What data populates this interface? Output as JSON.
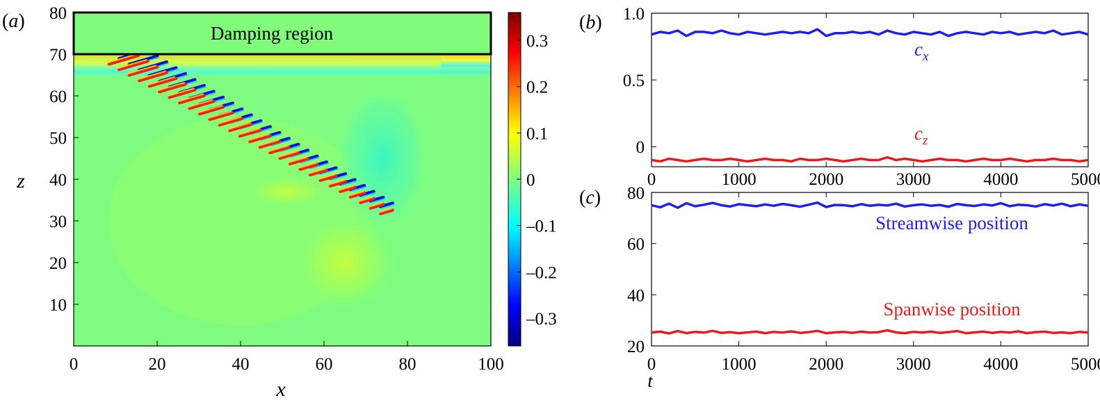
{
  "colors": {
    "blue": "#1f1fe6",
    "red": "#e61c1c",
    "field_bg": "#7ffc7f",
    "damping_bg": "#80fa7a"
  },
  "chart_data": [
    {
      "type": "heatmap",
      "panel": "(a)",
      "panel_letter": "a",
      "xlabel": "x",
      "ylabel": "z",
      "xlim": [
        0,
        100
      ],
      "ylim": [
        0,
        80
      ],
      "xticks": [
        0,
        20,
        40,
        60,
        80,
        100
      ],
      "yticks": [
        10,
        20,
        30,
        40,
        50,
        60,
        70,
        80
      ],
      "annotation": "Damping region",
      "damping_region": {
        "z_from": 70,
        "z_to": 80,
        "x_from": 0,
        "x_to": 100
      },
      "colorbar": {
        "range": [
          -0.36,
          0.36
        ],
        "ticks": [
          0.3,
          0.2,
          0.1,
          0,
          -0.1,
          -0.2,
          -0.3
        ],
        "tick_labels": [
          "0.3",
          "0.2",
          "0.1",
          "0",
          "–0.1",
          "–0.2",
          "–0.3"
        ],
        "colormap": "jet"
      },
      "wake": {
        "source": [
          75,
          33
        ],
        "edge_start": [
          12,
          70
        ],
        "note": "alternating positive/negative streaks along a wedge from the source toward the damping region"
      }
    },
    {
      "type": "line",
      "panel": "(b)",
      "panel_letter": "b",
      "xlim": [
        0,
        5000
      ],
      "ylim": [
        -0.15,
        1.0
      ],
      "xticks": [
        0,
        1000,
        2000,
        3000,
        4000,
        5000
      ],
      "yticks": [
        0,
        0.5,
        1.0
      ],
      "ytick_labels": [
        "0",
        "0.5",
        "1.0"
      ],
      "series": [
        {
          "name": "c",
          "subscript": "x",
          "color": "#1f1fe6",
          "x": [
            0,
            100,
            200,
            300,
            400,
            500,
            600,
            700,
            800,
            900,
            1000,
            1100,
            1200,
            1300,
            1400,
            1500,
            1600,
            1700,
            1800,
            1900,
            2000,
            2100,
            2200,
            2300,
            2400,
            2500,
            2600,
            2700,
            2800,
            2900,
            3000,
            3100,
            3200,
            3300,
            3400,
            3500,
            3600,
            3700,
            3800,
            3900,
            4000,
            4100,
            4200,
            4300,
            4400,
            4500,
            4600,
            4700,
            4800,
            4900,
            5000
          ],
          "y": [
            0.84,
            0.86,
            0.85,
            0.87,
            0.83,
            0.86,
            0.86,
            0.85,
            0.87,
            0.85,
            0.84,
            0.86,
            0.85,
            0.84,
            0.85,
            0.86,
            0.85,
            0.86,
            0.85,
            0.88,
            0.83,
            0.85,
            0.85,
            0.86,
            0.85,
            0.86,
            0.84,
            0.87,
            0.85,
            0.84,
            0.86,
            0.85,
            0.84,
            0.86,
            0.83,
            0.85,
            0.86,
            0.85,
            0.84,
            0.86,
            0.85,
            0.86,
            0.84,
            0.85,
            0.86,
            0.85,
            0.87,
            0.84,
            0.85,
            0.86,
            0.84
          ]
        },
        {
          "name": "c",
          "subscript": "z",
          "color": "#e61c1c",
          "x": [
            0,
            100,
            200,
            300,
            400,
            500,
            600,
            700,
            800,
            900,
            1000,
            1100,
            1200,
            1300,
            1400,
            1500,
            1600,
            1700,
            1800,
            1900,
            2000,
            2100,
            2200,
            2300,
            2400,
            2500,
            2600,
            2700,
            2800,
            2900,
            3000,
            3100,
            3200,
            3300,
            3400,
            3500,
            3600,
            3700,
            3800,
            3900,
            4000,
            4100,
            4200,
            4300,
            4400,
            4500,
            4600,
            4700,
            4800,
            4900,
            5000
          ],
          "y": [
            -0.1,
            -0.11,
            -0.09,
            -0.1,
            -0.11,
            -0.1,
            -0.09,
            -0.1,
            -0.1,
            -0.09,
            -0.1,
            -0.11,
            -0.1,
            -0.09,
            -0.1,
            -0.1,
            -0.11,
            -0.09,
            -0.1,
            -0.1,
            -0.09,
            -0.1,
            -0.11,
            -0.1,
            -0.09,
            -0.1,
            -0.1,
            -0.08,
            -0.1,
            -0.09,
            -0.1,
            -0.11,
            -0.1,
            -0.09,
            -0.1,
            -0.1,
            -0.11,
            -0.1,
            -0.09,
            -0.1,
            -0.1,
            -0.09,
            -0.1,
            -0.11,
            -0.1,
            -0.1,
            -0.09,
            -0.1,
            -0.1,
            -0.11,
            -0.1
          ]
        }
      ]
    },
    {
      "type": "line",
      "panel": "(c)",
      "panel_letter": "c",
      "xlabel": "t",
      "xlim": [
        0,
        5000
      ],
      "ylim": [
        20,
        80
      ],
      "xticks": [
        0,
        1000,
        2000,
        3000,
        4000,
        5000
      ],
      "yticks": [
        20,
        40,
        60,
        80
      ],
      "series": [
        {
          "name": "Streamwise position",
          "color": "#1f1fe6",
          "x": [
            0,
            100,
            200,
            300,
            400,
            500,
            600,
            700,
            800,
            900,
            1000,
            1100,
            1200,
            1300,
            1400,
            1500,
            1600,
            1700,
            1800,
            1900,
            2000,
            2100,
            2200,
            2300,
            2400,
            2500,
            2600,
            2700,
            2800,
            2900,
            3000,
            3100,
            3200,
            3300,
            3400,
            3500,
            3600,
            3700,
            3800,
            3900,
            4000,
            4100,
            4200,
            4300,
            4400,
            4500,
            4600,
            4700,
            4800,
            4900,
            5000
          ],
          "y": [
            75.0,
            74.2,
            75.6,
            74.0,
            75.8,
            74.6,
            75.2,
            75.9,
            75.0,
            74.5,
            75.4,
            75.0,
            74.6,
            75.3,
            74.8,
            75.5,
            75.0,
            74.4,
            75.2,
            76.0,
            74.3,
            75.1,
            75.0,
            74.6,
            75.4,
            74.8,
            75.2,
            74.9,
            75.6,
            74.5,
            75.0,
            75.3,
            74.8,
            75.1,
            74.4,
            75.5,
            75.0,
            74.7,
            75.3,
            74.9,
            75.8,
            74.6,
            75.2,
            75.0,
            74.5,
            75.4,
            74.9,
            75.6,
            74.6,
            75.3,
            74.8
          ]
        },
        {
          "name": "Spanwise position",
          "color": "#e61c1c",
          "x": [
            0,
            100,
            200,
            300,
            400,
            500,
            600,
            700,
            800,
            900,
            1000,
            1100,
            1200,
            1300,
            1400,
            1500,
            1600,
            1700,
            1800,
            1900,
            2000,
            2100,
            2200,
            2300,
            2400,
            2500,
            2600,
            2700,
            2800,
            2900,
            3000,
            3100,
            3200,
            3300,
            3400,
            3500,
            3600,
            3700,
            3800,
            3900,
            4000,
            4100,
            4200,
            4300,
            4400,
            4500,
            4600,
            4700,
            4800,
            4900,
            5000
          ],
          "y": [
            25.2,
            25.6,
            24.9,
            25.8,
            25.0,
            25.5,
            25.2,
            25.9,
            25.1,
            25.4,
            25.0,
            25.3,
            25.6,
            25.0,
            25.5,
            25.2,
            25.7,
            25.1,
            25.4,
            25.9,
            25.0,
            25.3,
            25.5,
            25.1,
            25.6,
            25.2,
            25.4,
            26.1,
            25.3,
            25.0,
            25.5,
            25.2,
            25.6,
            25.1,
            25.4,
            25.8,
            25.0,
            25.3,
            25.6,
            25.1,
            25.5,
            25.2,
            25.7,
            25.0,
            25.4,
            25.6,
            25.1,
            25.3,
            25.0,
            25.5,
            25.2
          ]
        }
      ]
    }
  ]
}
